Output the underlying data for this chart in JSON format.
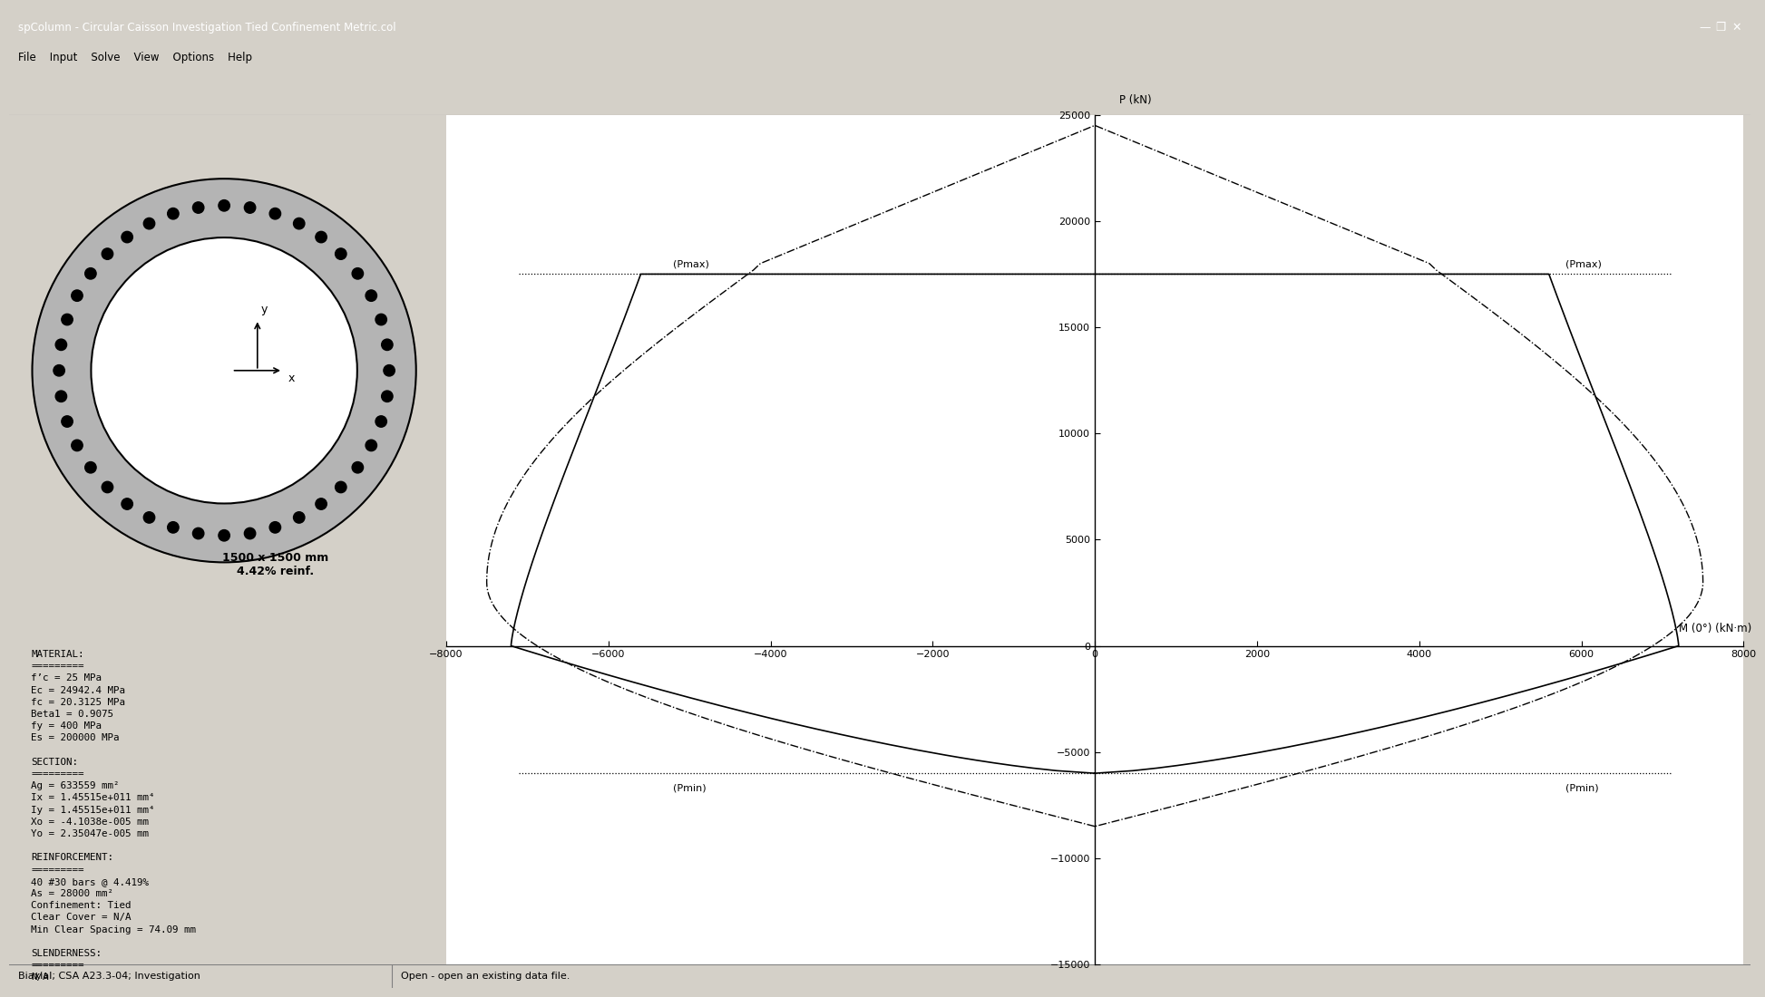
{
  "title": "spColumn - Circular Caisson Investigation Tied Confinement Metric.col",
  "win_bg": "#d4d0c8",
  "title_bar_bg": "#0a246a",
  "title_bar_fg": "#ffffff",
  "panel_bg": "#c0d0e0",
  "section_bg": "#ffffff",
  "plot_bg": "#ffffff",
  "P_label": "P (kN)",
  "M_label": "M (0°) (kN·m)",
  "xlim": [
    -8000,
    8000
  ],
  "ylim": [
    -15000,
    25000
  ],
  "xticks": [
    -8000,
    -6000,
    -4000,
    -2000,
    0,
    2000,
    4000,
    6000,
    8000
  ],
  "yticks": [
    -15000,
    -10000,
    -5000,
    0,
    5000,
    10000,
    15000,
    20000,
    25000
  ],
  "Pmax_val": 17500,
  "Pmin_val": -6000,
  "num_bars": 40,
  "dim_text": "1500 x 1500 mm\n4.42% reinf.",
  "status_left": "Biaxial; CSA A23.3-04; Investigation",
  "status_right": "Open - open an existing data file.",
  "menu_text": "File    Input    Solve    View    Options    Help",
  "prop_text": "MATERIAL:\n=========\nf’c = 25 MPa\nEc = 24942.4 MPa\nfc = 20.3125 MPa\nBeta1 = 0.9075\nfy = 400 MPa\nEs = 200000 MPa\n\nSECTION:\n=========\nAg = 633559 mm²\nIx = 1.45515e+011 mm⁴\nIy = 1.45515e+011 mm⁴\nXo = -4.1038e-005 mm\nYo = 2.35047e-005 mm\n\nREINFORCEMENT:\n=========\n40 #30 bars @ 4.419%\nAs = 28000 mm²\nConfinement: Tied\nClear Cover = N/A\nMin Clear Spacing = 74.09 mm\n\nSLENDERNESS:\n=========\nN/A"
}
